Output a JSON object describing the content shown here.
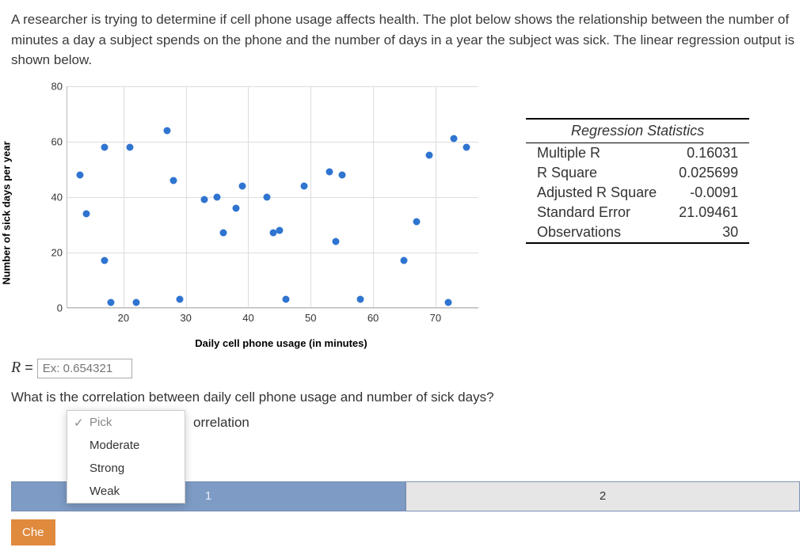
{
  "prompt": "A researcher is trying to determine if cell phone usage affects health. The plot below shows the relationship between the number of minutes a day a subject spends on the phone and the number of days in a year the subject was sick. The linear regression output is shown below.",
  "chart": {
    "type": "scatter",
    "xlabel": "Daily cell phone usage (in minutes)",
    "ylabel": "Number of sick days per year",
    "xlim": [
      11,
      77
    ],
    "ylim": [
      0,
      80
    ],
    "xticks": [
      20,
      30,
      40,
      50,
      60,
      70
    ],
    "yticks": [
      0,
      20,
      40,
      60,
      80
    ],
    "point_color": "#2f74d0",
    "grid_color": "#dddddd",
    "points": [
      [
        13,
        48
      ],
      [
        14,
        34
      ],
      [
        17,
        58
      ],
      [
        17,
        17
      ],
      [
        18,
        2
      ],
      [
        21,
        58
      ],
      [
        22,
        2
      ],
      [
        27,
        64
      ],
      [
        28,
        46
      ],
      [
        29,
        3
      ],
      [
        33,
        39
      ],
      [
        35,
        40
      ],
      [
        36,
        27
      ],
      [
        38,
        36
      ],
      [
        39,
        44
      ],
      [
        43,
        40
      ],
      [
        44,
        27
      ],
      [
        45,
        28
      ],
      [
        46,
        3
      ],
      [
        49,
        44
      ],
      [
        53,
        49
      ],
      [
        54,
        24
      ],
      [
        55,
        48
      ],
      [
        58,
        3
      ],
      [
        65,
        17
      ],
      [
        67,
        31
      ],
      [
        69,
        55
      ],
      [
        72,
        2
      ],
      [
        73,
        61
      ],
      [
        75,
        58
      ]
    ]
  },
  "stats": {
    "title": "Regression Statistics",
    "rows": [
      {
        "label": "Multiple R",
        "value": "0.16031"
      },
      {
        "label": "R Square",
        "value": "0.025699"
      },
      {
        "label": "Adjusted R Square",
        "value": "-0.0091"
      },
      {
        "label": "Standard Error",
        "value": "21.09461"
      },
      {
        "label": "Observations",
        "value": "30"
      }
    ]
  },
  "r_input": {
    "label_prefix": "R",
    "equals": "=",
    "placeholder": "Ex: 0.654321"
  },
  "question": "What is the correlation between daily cell phone usage and number of sick days?",
  "dropdown": {
    "selected": "Pick",
    "options": [
      "Pick",
      "Moderate",
      "Strong",
      "Weak"
    ],
    "suffix_visible": "orrelation"
  },
  "stepper": {
    "step1": "1",
    "step2": "2"
  },
  "check_button": "Che"
}
